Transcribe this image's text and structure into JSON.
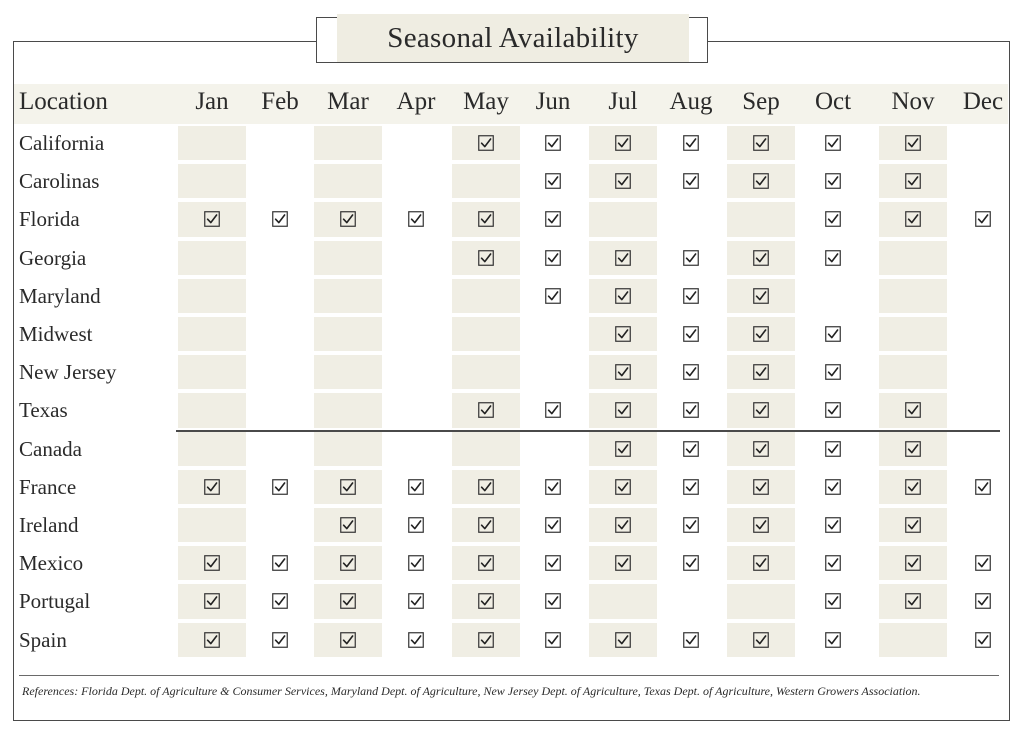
{
  "title": "Seasonal Availability",
  "header": {
    "location_label": "Location",
    "months": [
      "Jan",
      "Feb",
      "Mar",
      "Apr",
      "May",
      "Jun",
      "Jul",
      "Aug",
      "Sep",
      "Oct",
      "Nov",
      "Dec"
    ]
  },
  "rows": [
    {
      "location": "California",
      "available": [
        0,
        0,
        0,
        0,
        1,
        1,
        1,
        1,
        1,
        1,
        1,
        0
      ]
    },
    {
      "location": "Carolinas",
      "available": [
        0,
        0,
        0,
        0,
        0,
        1,
        1,
        1,
        1,
        1,
        1,
        0
      ]
    },
    {
      "location": "Florida",
      "available": [
        1,
        1,
        1,
        1,
        1,
        1,
        0,
        0,
        0,
        1,
        1,
        1
      ]
    },
    {
      "location": "Georgia",
      "available": [
        0,
        0,
        0,
        0,
        1,
        1,
        1,
        1,
        1,
        1,
        0,
        0
      ]
    },
    {
      "location": "Maryland",
      "available": [
        0,
        0,
        0,
        0,
        0,
        1,
        1,
        1,
        1,
        0,
        0,
        0
      ]
    },
    {
      "location": "Midwest",
      "available": [
        0,
        0,
        0,
        0,
        0,
        0,
        1,
        1,
        1,
        1,
        0,
        0
      ]
    },
    {
      "location": "New Jersey",
      "available": [
        0,
        0,
        0,
        0,
        0,
        0,
        1,
        1,
        1,
        1,
        0,
        0
      ]
    },
    {
      "location": "Texas",
      "available": [
        0,
        0,
        0,
        0,
        1,
        1,
        1,
        1,
        1,
        1,
        1,
        0
      ]
    },
    {
      "location": "Canada",
      "available": [
        0,
        0,
        0,
        0,
        0,
        0,
        1,
        1,
        1,
        1,
        1,
        0
      ]
    },
    {
      "location": "France",
      "available": [
        1,
        1,
        1,
        1,
        1,
        1,
        1,
        1,
        1,
        1,
        1,
        1
      ]
    },
    {
      "location": "Ireland",
      "available": [
        0,
        0,
        1,
        1,
        1,
        1,
        1,
        1,
        1,
        1,
        1,
        0
      ]
    },
    {
      "location": "Mexico",
      "available": [
        1,
        1,
        1,
        1,
        1,
        1,
        1,
        1,
        1,
        1,
        1,
        1
      ]
    },
    {
      "location": "Portugal",
      "available": [
        1,
        1,
        1,
        1,
        1,
        1,
        0,
        0,
        0,
        1,
        1,
        1
      ]
    },
    {
      "location": "Spain",
      "available": [
        1,
        1,
        1,
        1,
        1,
        1,
        1,
        1,
        1,
        1,
        0,
        1
      ]
    }
  ],
  "references": "References: Florida Dept. of Agriculture & Consumer Services, Maryland Dept. of Agriculture, New Jersey Dept. of Agriculture, Texas Dept. of Agriculture, Western Growers Association."
}
